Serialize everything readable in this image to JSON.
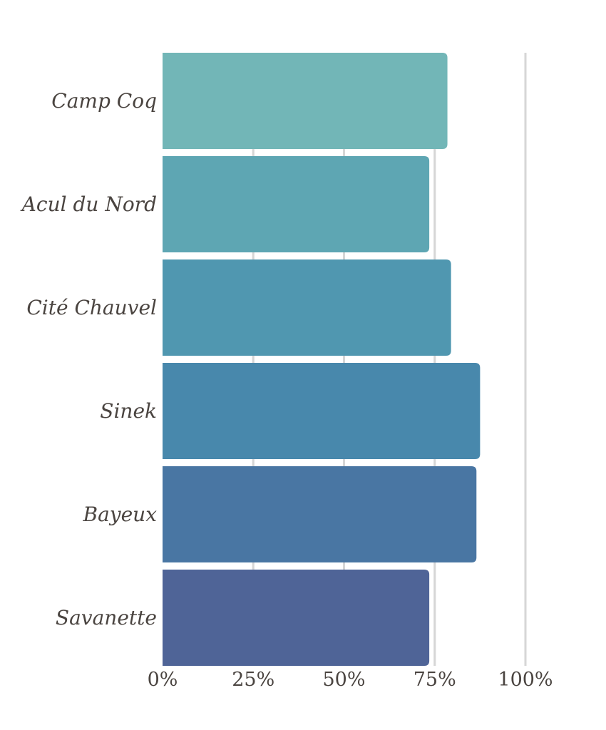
{
  "chart_data": {
    "type": "bar",
    "orientation": "horizontal",
    "categories": [
      "Camp Coq",
      "Acul du Nord",
      "Cité Chauvel",
      "Sinek",
      "Bayeux",
      "Savanette"
    ],
    "values": [
      78.5,
      73.5,
      79.5,
      87.5,
      86.5,
      73.5
    ],
    "colors": [
      "#72b6b7",
      "#5ea6b3",
      "#5097b0",
      "#4888ac",
      "#4976a3",
      "#4f6497"
    ],
    "xlim": [
      0,
      100
    ],
    "xticks": [
      0,
      25,
      50,
      75,
      100
    ],
    "xtick_labels": [
      "0%",
      "25%",
      "50%",
      "75%",
      "100%"
    ],
    "grid": "vertical",
    "grid_color": "#d6d6d6",
    "title": "",
    "xlabel": "",
    "ylabel": ""
  }
}
